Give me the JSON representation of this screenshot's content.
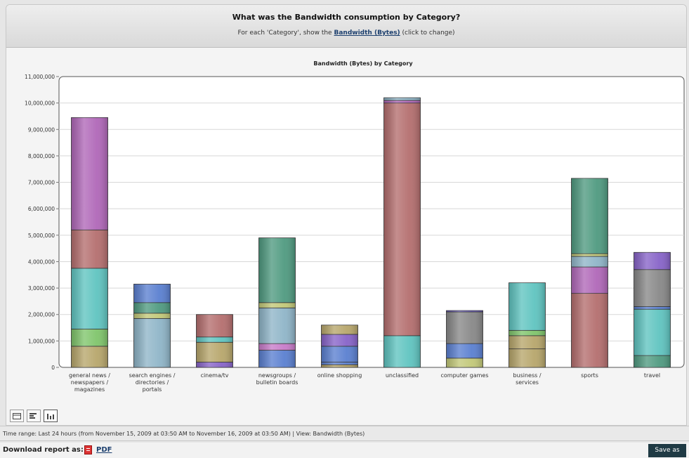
{
  "header": {
    "question": "What was the Bandwidth consumption by Category?",
    "subtitle_prefix": "For each 'Category', show the",
    "subtitle_link": "Bandwidth (Bytes)",
    "subtitle_suffix": "(click to change)"
  },
  "chart_data": {
    "type": "bar",
    "stacked": true,
    "title": "Bandwidth (Bytes) by Category",
    "xlabel": "",
    "ylabel": "",
    "ylim": [
      0,
      11000000
    ],
    "yticks": [
      0,
      1000000,
      2000000,
      3000000,
      4000000,
      5000000,
      6000000,
      7000000,
      8000000,
      9000000,
      10000000,
      11000000
    ],
    "ytick_labels": [
      "0",
      "1,000,000",
      "2,000,000",
      "3,000,000",
      "4,000,000",
      "5,000,000",
      "6,000,000",
      "7,000,000",
      "8,000,000",
      "9,000,000",
      "10,000,000",
      "11,000,000"
    ],
    "grid": true,
    "legend": "none",
    "categories": [
      [
        "general news /",
        "newspapers /",
        "magazines"
      ],
      [
        "search engines /",
        "directories /",
        "portals"
      ],
      [
        "cinema/tv"
      ],
      [
        "newsgroups /",
        "bulletin boards"
      ],
      [
        "online shopping"
      ],
      [
        "unclassified"
      ],
      [
        "computer games"
      ],
      [
        "business /",
        "services"
      ],
      [
        "sports"
      ],
      [
        "travel"
      ]
    ],
    "stacks": [
      [
        {
          "value": 800000,
          "color": "#b7a66b"
        },
        {
          "value": 650000,
          "color": "#7fc56b"
        },
        {
          "value": 2300000,
          "color": "#5fc4c0"
        },
        {
          "value": 1450000,
          "color": "#b46e6e"
        },
        {
          "value": 4250000,
          "color": "#b067b8"
        }
      ],
      [
        {
          "value": 1850000,
          "color": "#8fb5c8"
        },
        {
          "value": 200000,
          "color": "#c2c878"
        },
        {
          "value": 400000,
          "color": "#4f9a80"
        },
        {
          "value": 700000,
          "color": "#5a7fd0"
        }
      ],
      [
        {
          "value": 200000,
          "color": "#8763c8"
        },
        {
          "value": 750000,
          "color": "#b7a66b"
        },
        {
          "value": 200000,
          "color": "#5fc4c0"
        },
        {
          "value": 850000,
          "color": "#b46e6e"
        }
      ],
      [
        {
          "value": 650000,
          "color": "#5a7fd0"
        },
        {
          "value": 250000,
          "color": "#c77bc9"
        },
        {
          "value": 1350000,
          "color": "#8fb5c8"
        },
        {
          "value": 200000,
          "color": "#c2c878"
        },
        {
          "value": 2450000,
          "color": "#4f9a80"
        }
      ],
      [
        {
          "value": 100000,
          "color": "#b7a66b"
        },
        {
          "value": 100000,
          "color": "#5a7fd0"
        },
        {
          "value": 600000,
          "color": "#5a7fd0"
        },
        {
          "value": 450000,
          "color": "#8763c8"
        },
        {
          "value": 350000,
          "color": "#b7a66b"
        }
      ],
      [
        {
          "value": 1200000,
          "color": "#5fc4c0"
        },
        {
          "value": 8800000,
          "color": "#b46e6e"
        },
        {
          "value": 100000,
          "color": "#b067b8"
        },
        {
          "value": 100000,
          "color": "#8fb5c8"
        }
      ],
      [
        {
          "value": 350000,
          "color": "#c2c878"
        },
        {
          "value": 550000,
          "color": "#5a7fd0"
        },
        {
          "value": 1200000,
          "color": "#888888"
        },
        {
          "value": 50000,
          "color": "#6a5acd"
        }
      ],
      [
        {
          "value": 700000,
          "color": "#b7a66b"
        },
        {
          "value": 500000,
          "color": "#b7a66b"
        },
        {
          "value": 200000,
          "color": "#7fc56b"
        },
        {
          "value": 1800000,
          "color": "#5fc4c0"
        }
      ],
      [
        {
          "value": 2800000,
          "color": "#b46e6e"
        },
        {
          "value": 1000000,
          "color": "#b067b8"
        },
        {
          "value": 400000,
          "color": "#8fb5c8"
        },
        {
          "value": 100000,
          "color": "#c2c878"
        },
        {
          "value": 2850000,
          "color": "#4f9a80"
        }
      ],
      [
        {
          "value": 450000,
          "color": "#4f9a80"
        },
        {
          "value": 1750000,
          "color": "#5fc4c0"
        },
        {
          "value": 100000,
          "color": "#5a7fd0"
        },
        {
          "value": 1400000,
          "color": "#888888"
        },
        {
          "value": 650000,
          "color": "#8763c8"
        }
      ]
    ]
  },
  "toolbar": {
    "buttons": [
      "table-view-icon",
      "horizontal-bar-icon",
      "vertical-bar-icon"
    ],
    "active": "vertical-bar-icon"
  },
  "footer": {
    "time_range": "Time range: Last 24 hours (from November 15, 2009 at 03:50 AM to November 16, 2009 at 03:50 AM) | View: Bandwidth (Bytes)",
    "download_label": "Download report as:",
    "pdf_label": "PDF",
    "save_label": "Save as"
  }
}
